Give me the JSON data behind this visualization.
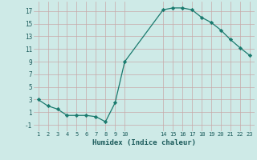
{
  "x": [
    1,
    2,
    3,
    4,
    5,
    6,
    7,
    8,
    9,
    10,
    14,
    15,
    16,
    17,
    18,
    19,
    20,
    21,
    22,
    23
  ],
  "y": [
    3,
    2,
    1.5,
    0.5,
    0.5,
    0.5,
    0.3,
    -0.5,
    2.5,
    9,
    17.2,
    17.5,
    17.5,
    17.2,
    16.0,
    15.2,
    14.0,
    12.5,
    11.2,
    10.0
  ],
  "title": "",
  "xlabel": "Humidex (Indice chaleur)",
  "ylabel": "",
  "line_color": "#1a7a6e",
  "marker": "D",
  "marker_size": 2.2,
  "bg_color": "#ceeae7",
  "grid_color": "#b0d5d0",
  "xlim": [
    0.5,
    23.5
  ],
  "ylim": [
    -2,
    18.5
  ],
  "xticks": [
    1,
    2,
    3,
    4,
    5,
    6,
    7,
    8,
    9,
    10,
    14,
    15,
    16,
    17,
    18,
    19,
    20,
    21,
    22,
    23
  ],
  "yticks": [
    -1,
    1,
    3,
    5,
    7,
    9,
    11,
    13,
    15,
    17
  ]
}
